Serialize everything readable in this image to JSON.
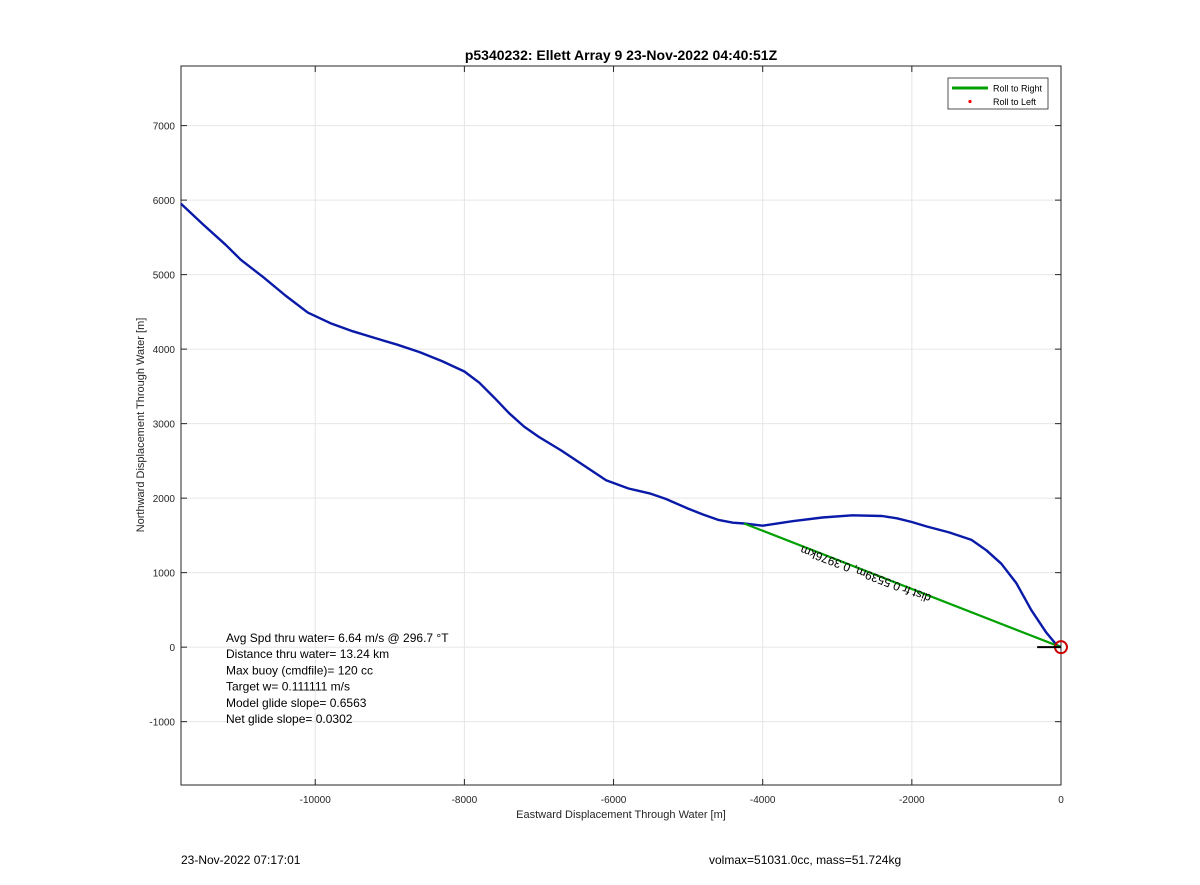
{
  "chart_data": {
    "type": "line",
    "title": "p5340232: Ellett Array 9 23-Nov-2022 04:40:51Z",
    "xlabel": "Eastward Displacement Through Water [m]",
    "ylabel": "Northward Displacement Through Water [m]",
    "xlim": [
      -11800,
      0
    ],
    "ylim": [
      -1850,
      7800
    ],
    "xticks": [
      -10000,
      -8000,
      -6000,
      -4000,
      -2000,
      0
    ],
    "yticks": [
      -1000,
      0,
      1000,
      2000,
      3000,
      4000,
      5000,
      6000,
      7000
    ],
    "grid": true,
    "legend_placement": "top-right",
    "legend": [
      {
        "label": "Roll to Right",
        "color": "#00a000",
        "marker": "line"
      },
      {
        "label": "Roll to Left",
        "color": "#ff0000",
        "marker": "dot"
      }
    ],
    "series": [
      {
        "name": "track",
        "color": "#0a1aa8",
        "x": [
          -11800,
          -11500,
          -11200,
          -11000,
          -10700,
          -10400,
          -10100,
          -9800,
          -9500,
          -9200,
          -8900,
          -8600,
          -8300,
          -8000,
          -7800,
          -7600,
          -7400,
          -7200,
          -7000,
          -6700,
          -6400,
          -6100,
          -5800,
          -5500,
          -5300,
          -5000,
          -4800,
          -4600,
          -4400,
          -4250,
          -4000,
          -3600,
          -3200,
          -2800,
          -2400,
          -2200,
          -2000,
          -1800,
          -1500,
          -1200,
          -1000,
          -800,
          -600,
          -400,
          -200,
          -60,
          0
        ],
        "y": [
          5950,
          5670,
          5400,
          5200,
          4970,
          4720,
          4490,
          4350,
          4240,
          4150,
          4060,
          3960,
          3840,
          3700,
          3550,
          3350,
          3140,
          2960,
          2820,
          2640,
          2440,
          2240,
          2130,
          2060,
          1990,
          1860,
          1780,
          1710,
          1670,
          1660,
          1630,
          1690,
          1740,
          1770,
          1760,
          1730,
          1680,
          1620,
          1540,
          1440,
          1300,
          1120,
          860,
          500,
          200,
          30,
          0
        ]
      },
      {
        "name": "roll to right",
        "color": "#00a000",
        "x": [
          -4250,
          0
        ],
        "y": [
          1660,
          0
        ]
      }
    ],
    "markers": [
      {
        "type": "circle",
        "x": 0,
        "y": 0,
        "color": "#cc0000"
      }
    ],
    "annotations": [
      {
        "text": "dist fr 0.5539m, 0.3976km",
        "x": -2600,
        "y": 1030,
        "rotation_deg": 21
      }
    ],
    "info_text": [
      "Avg Spd thru water=  6.64 m/s @ 296.7 °T",
      "Distance thru water= 13.24 km",
      "Max buoy (cmdfile)= 120 cc",
      "Target w= 0.111111 m/s",
      "Model glide slope= 0.6563",
      "Net glide slope= 0.0302"
    ]
  },
  "footer": {
    "timestamp": "23-Nov-2022 07:17:01",
    "summary": "volmax=51031.0cc, mass=51.724kg"
  },
  "colors": {
    "track": "#0a1aa8",
    "roll_right": "#00a000",
    "roll_left": "#ff0000",
    "grid": "#e6e6e6",
    "axis": "#262626"
  }
}
